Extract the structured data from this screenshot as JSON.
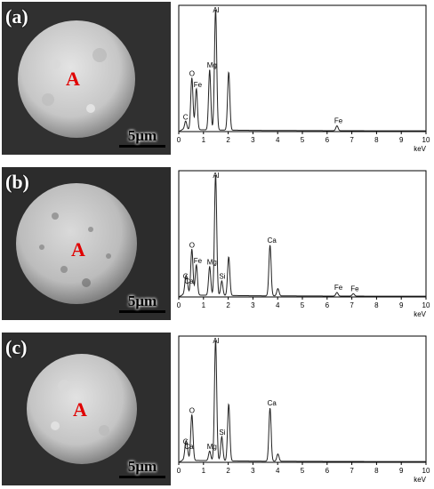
{
  "colors": {
    "point_label": "#e00000",
    "spectrum_line": "#222222",
    "sem_background": "#2a2a2a"
  },
  "chart_data": [
    {
      "type": "line",
      "panel_label": "(a)",
      "sem_point_label": "A",
      "scale_bar": "5μm",
      "xlabel": "keV",
      "xlim": [
        0,
        10
      ],
      "xticks": [
        "0",
        "1",
        "2",
        "3",
        "4",
        "5",
        "6",
        "7",
        "8",
        "9",
        "10"
      ],
      "peaks": [
        {
          "x": 0.28,
          "y": 7,
          "label": "C"
        },
        {
          "x": 0.53,
          "y": 43,
          "label": "O"
        },
        {
          "x": 0.71,
          "y": 34,
          "label": "Fe"
        },
        {
          "x": 1.25,
          "y": 50,
          "label": "Mg"
        },
        {
          "x": 1.49,
          "y": 100,
          "label": "Al"
        },
        {
          "x": 2.02,
          "y": 48,
          "label": ""
        },
        {
          "x": 6.4,
          "y": 4,
          "label": "Fe"
        }
      ]
    },
    {
      "type": "line",
      "panel_label": "(b)",
      "sem_point_label": "A",
      "scale_bar": "5μm",
      "xlabel": "keV",
      "xlim": [
        0,
        10
      ],
      "xticks": [
        "0",
        "1",
        "2",
        "3",
        "4",
        "5",
        "6",
        "7",
        "8",
        "9",
        "10"
      ],
      "peaks": [
        {
          "x": 0.28,
          "y": 12,
          "label": "C"
        },
        {
          "x": 0.34,
          "y": 8,
          "label": "Ca"
        },
        {
          "x": 0.53,
          "y": 38,
          "label": "O"
        },
        {
          "x": 0.71,
          "y": 25,
          "label": "Fe"
        },
        {
          "x": 1.25,
          "y": 24,
          "label": "Mg"
        },
        {
          "x": 1.49,
          "y": 100,
          "label": "Al"
        },
        {
          "x": 1.74,
          "y": 12,
          "label": "Si"
        },
        {
          "x": 2.02,
          "y": 32,
          "label": ""
        },
        {
          "x": 3.69,
          "y": 42,
          "label": "Ca"
        },
        {
          "x": 4.01,
          "y": 6,
          "label": ""
        },
        {
          "x": 6.4,
          "y": 3,
          "label": "Fe"
        },
        {
          "x": 7.06,
          "y": 2,
          "label": "Fe"
        }
      ]
    },
    {
      "type": "line",
      "panel_label": "(c)",
      "sem_point_label": "A",
      "scale_bar": "5μm",
      "xlabel": "keV",
      "xlim": [
        0,
        10
      ],
      "xticks": [
        "0",
        "1",
        "2",
        "3",
        "4",
        "5",
        "6",
        "7",
        "8",
        "9",
        "10"
      ],
      "peaks": [
        {
          "x": 0.28,
          "y": 12,
          "label": "C"
        },
        {
          "x": 0.34,
          "y": 8,
          "label": "Ca"
        },
        {
          "x": 0.53,
          "y": 38,
          "label": "O"
        },
        {
          "x": 1.25,
          "y": 8,
          "label": "Mg"
        },
        {
          "x": 1.49,
          "y": 100,
          "label": "Al"
        },
        {
          "x": 1.74,
          "y": 20,
          "label": "Si"
        },
        {
          "x": 2.02,
          "y": 47,
          "label": ""
        },
        {
          "x": 3.69,
          "y": 44,
          "label": "Ca"
        },
        {
          "x": 4.01,
          "y": 6,
          "label": ""
        }
      ]
    }
  ]
}
